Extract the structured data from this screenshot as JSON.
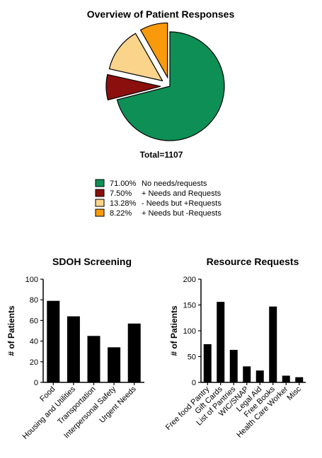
{
  "chart_data": [
    {
      "type": "pie",
      "title": "Overview of Patient Responses",
      "total_label": "Total=1107",
      "slices": [
        {
          "percent_label": "71.00%",
          "label": "No needs/requests",
          "value": 71.0,
          "color": "#0e8f55",
          "exploded": false
        },
        {
          "percent_label": "7.50%",
          "label": "+ Needs and Requests",
          "value": 7.5,
          "color": "#8b0f0c",
          "exploded": true
        },
        {
          "percent_label": "13.28%",
          "label": "- Needs but +Requests",
          "value": 13.28,
          "color": "#fbd48c",
          "exploded": true
        },
        {
          "percent_label": "8.22%",
          "label": "+ Needs but -Requests",
          "value": 8.22,
          "color": "#f99a0d",
          "exploded": true
        }
      ],
      "legend_position": "bottom"
    },
    {
      "type": "bar",
      "title": "SDOH Screening",
      "xlabel": "",
      "ylabel": "# of Patients",
      "ylim": [
        0,
        100
      ],
      "yticks": [
        "0",
        "20",
        "40",
        "60",
        "80",
        "100"
      ],
      "categories": [
        "Food",
        "Housing and Utilities",
        "Transportation",
        "Interpersonal Safety",
        "Urgent Needs"
      ],
      "values": [
        79,
        64,
        45,
        34,
        57
      ],
      "bar_color": "#000000"
    },
    {
      "type": "bar",
      "title": "Resource Requests",
      "xlabel": "",
      "ylabel": "# of Patients",
      "ylim": [
        0,
        200
      ],
      "yticks": [
        "0",
        "50",
        "100",
        "150",
        "200"
      ],
      "categories": [
        "Free food Pantry",
        "Gift Cards",
        "List of Pantries",
        "WIC/SNAP",
        "Legal Aid",
        "Free Books",
        "Health Care Worker",
        "Misc"
      ],
      "values": [
        74,
        156,
        63,
        31,
        23,
        147,
        13,
        10
      ],
      "bar_color": "#000000"
    }
  ]
}
